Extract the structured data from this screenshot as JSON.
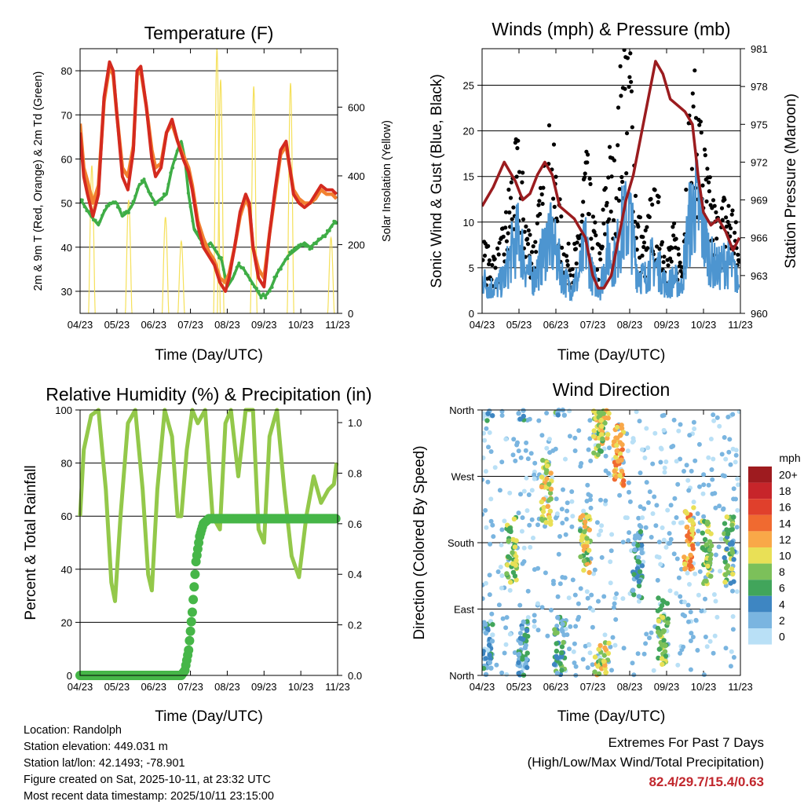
{
  "chart_data": [
    {
      "type": "line",
      "title": "Temperature (F)",
      "xlabel": "Time (Day/UTC)",
      "ylabel": "2m & 9m T (Red, Orange) & 2m Td (Green)",
      "y2label": "Solar Insolation (Yellow)",
      "x_ticks": [
        "04/23",
        "05/23",
        "06/23",
        "07/23",
        "08/23",
        "09/23",
        "10/23",
        "11/23"
      ],
      "xlim": [
        0,
        7
      ],
      "ylim": [
        25,
        85
      ],
      "y_ticks": [
        30,
        40,
        50,
        60,
        70,
        80
      ],
      "y2lim": [
        0,
        770
      ],
      "y2_ticks": [
        0,
        200,
        400,
        600
      ],
      "series": [
        {
          "name": "2m T",
          "color": "#d42a1f",
          "x": [
            0,
            0.1,
            0.2,
            0.35,
            0.5,
            0.65,
            0.8,
            0.9,
            1,
            1.15,
            1.3,
            1.45,
            1.55,
            1.65,
            1.8,
            1.95,
            2.05,
            2.2,
            2.35,
            2.5,
            2.65,
            2.8,
            2.95,
            3.05,
            3.2,
            3.35,
            3.5,
            3.65,
            3.8,
            3.95,
            4.05,
            4.2,
            4.35,
            4.5,
            4.6,
            4.7,
            4.85,
            5,
            5.15,
            5.3,
            5.45,
            5.6,
            5.7,
            5.8,
            5.95,
            6.1,
            6.25,
            6.4,
            6.55,
            6.7,
            6.85,
            6.97
          ],
          "values": [
            66,
            56,
            52,
            47,
            52,
            74,
            82,
            80,
            70,
            56,
            53,
            62,
            80,
            81,
            72,
            60,
            56,
            58,
            66,
            69,
            64,
            60,
            57,
            53,
            45,
            40,
            38,
            36,
            32,
            30,
            33,
            40,
            48,
            52,
            50,
            40,
            33,
            31,
            43,
            53,
            62,
            64,
            58,
            52,
            50,
            49,
            50,
            52,
            54,
            53,
            53,
            52
          ]
        },
        {
          "name": "9m T",
          "color": "#f28030",
          "x": [
            0,
            0.1,
            0.2,
            0.35,
            0.5,
            0.65,
            0.8,
            0.9,
            1,
            1.15,
            1.3,
            1.45,
            1.55,
            1.65,
            1.8,
            1.95,
            2.05,
            2.2,
            2.35,
            2.5,
            2.65,
            2.8,
            2.95,
            3.05,
            3.2,
            3.35,
            3.5,
            3.65,
            3.8,
            3.95,
            4.05,
            4.2,
            4.35,
            4.5,
            4.6,
            4.7,
            4.85,
            5,
            5.15,
            5.3,
            5.45,
            5.6,
            5.7,
            5.8,
            5.95,
            6.1,
            6.25,
            6.4,
            6.55,
            6.7,
            6.85,
            6.97
          ],
          "values": [
            68,
            58,
            55,
            50,
            54,
            73,
            81,
            79,
            70,
            58,
            56,
            63,
            79,
            80,
            72,
            62,
            58,
            59,
            66,
            68,
            64,
            61,
            58,
            54,
            46,
            42,
            39,
            37,
            33,
            32,
            34,
            40,
            47,
            51,
            49,
            40,
            35,
            33,
            43,
            52,
            61,
            63,
            58,
            53,
            51,
            50,
            50,
            51,
            53,
            52,
            52,
            51
          ]
        },
        {
          "name": "2m Td",
          "color": "#3fad46",
          "x": [
            0,
            0.15,
            0.3,
            0.5,
            0.65,
            0.8,
            1,
            1.15,
            1.3,
            1.45,
            1.6,
            1.75,
            1.9,
            2.05,
            2.2,
            2.35,
            2.5,
            2.65,
            2.75,
            2.85,
            2.95,
            3.1,
            3.25,
            3.4,
            3.55,
            3.7,
            3.85,
            4,
            4.15,
            4.3,
            4.45,
            4.6,
            4.75,
            4.9,
            5.05,
            5.2,
            5.35,
            5.5,
            5.65,
            5.8,
            5.95,
            6.1,
            6.25,
            6.4,
            6.55,
            6.7,
            6.85,
            6.97
          ],
          "values": [
            51,
            49,
            47,
            45,
            48,
            50,
            50,
            47,
            48,
            50,
            54,
            55,
            52,
            50,
            51,
            52,
            58,
            62,
            64,
            60,
            52,
            44,
            42,
            40,
            41,
            39,
            37,
            31,
            33,
            36,
            35,
            33,
            31,
            29,
            29,
            31,
            34,
            36,
            38,
            39,
            40,
            41,
            40,
            41,
            42,
            43,
            45,
            46
          ]
        },
        {
          "name": "Solar Insolation",
          "color": "#f5e05a",
          "axis": "y2",
          "peaks": [
            {
              "x": 0.32,
              "value": 430
            },
            {
              "x": 1.32,
              "value": 330
            },
            {
              "x": 2.32,
              "value": 280
            },
            {
              "x": 2.75,
              "value": 210
            },
            {
              "x": 3.72,
              "value": 770
            },
            {
              "x": 3.82,
              "value": 680
            },
            {
              "x": 4.72,
              "value": 660
            },
            {
              "x": 5.72,
              "value": 670
            },
            {
              "x": 6.82,
              "value": 220
            }
          ]
        }
      ]
    },
    {
      "type": "line",
      "title": "Winds (mph) & Pressure (mb)",
      "xlabel": "Time (Day/UTC)",
      "ylabel": "Sonic Wind & Gust (Blue, Black)",
      "y2label": "Station Pressure (Maroon)",
      "x_ticks": [
        "04/23",
        "05/23",
        "06/23",
        "07/23",
        "08/23",
        "09/23",
        "10/23",
        "11/23"
      ],
      "xlim": [
        0,
        7
      ],
      "ylim": [
        0,
        29
      ],
      "y_ticks": [
        0,
        5,
        10,
        15,
        20,
        25
      ],
      "y2lim": [
        960,
        981
      ],
      "y2_ticks": [
        960,
        963,
        966,
        969,
        972,
        975,
        978,
        981
      ],
      "series": [
        {
          "name": "Sonic Wind",
          "color": "#4d95d0",
          "x": [
            0,
            0.2,
            0.4,
            0.6,
            0.8,
            1,
            1.2,
            1.4,
            1.6,
            1.8,
            2,
            2.2,
            2.4,
            2.6,
            2.8,
            3,
            3.2,
            3.4,
            3.6,
            3.8,
            4,
            4.2,
            4.4,
            4.6,
            4.8,
            5,
            5.2,
            5.4,
            5.6,
            5.8,
            6,
            6.2,
            6.4,
            6.6,
            6.8,
            6.97
          ],
          "values": [
            4,
            3,
            3,
            4,
            7,
            9,
            5,
            4,
            6,
            9,
            7,
            4,
            3,
            4,
            8,
            4,
            3,
            7,
            6,
            10,
            11,
            5,
            4,
            6,
            5,
            3,
            4,
            3,
            10,
            13,
            9,
            6,
            5,
            6,
            5,
            3
          ]
        },
        {
          "name": "Gust",
          "color": "#000000",
          "x": [
            0,
            0.2,
            0.4,
            0.6,
            0.8,
            1,
            1.2,
            1.4,
            1.6,
            1.8,
            2,
            2.2,
            2.4,
            2.6,
            2.8,
            3,
            3.2,
            3.4,
            3.6,
            3.8,
            4,
            4.2,
            4.4,
            4.6,
            4.8,
            5,
            5.2,
            5.4,
            5.6,
            5.8,
            6,
            6.2,
            6.4,
            6.6,
            6.8,
            6.97
          ],
          "values": [
            6,
            5,
            5,
            7,
            12,
            14,
            8,
            6,
            10,
            15,
            12,
            6,
            5,
            6,
            14,
            8,
            5,
            14,
            12,
            22,
            24,
            9,
            6,
            10,
            9,
            5,
            7,
            5,
            16,
            19,
            14,
            10,
            8,
            10,
            9,
            5
          ]
        },
        {
          "name": "Station Pressure",
          "color": "#9b1c1f",
          "axis": "y2",
          "x": [
            0,
            0.3,
            0.6,
            0.9,
            1.1,
            1.3,
            1.5,
            1.7,
            1.9,
            2.1,
            2.3,
            2.5,
            2.6,
            2.8,
            3,
            3.15,
            3.3,
            3.5,
            3.7,
            3.9,
            4.1,
            4.3,
            4.5,
            4.7,
            4.9,
            5.1,
            5.3,
            5.5,
            5.7,
            5.85,
            6,
            6.2,
            6.4,
            6.6,
            6.8,
            6.97
          ],
          "values": [
            968.5,
            970,
            972,
            970.5,
            969,
            969.5,
            971,
            972,
            971,
            968.5,
            968,
            967.5,
            967,
            966,
            963,
            962,
            962,
            963,
            966,
            969,
            971,
            974,
            977,
            980,
            979,
            977,
            976.5,
            976,
            975,
            971,
            968,
            967,
            967.5,
            966.5,
            965,
            966
          ]
        }
      ]
    },
    {
      "type": "line",
      "title": "Relative Humidity (%) & Precipitation (in)",
      "xlabel": "Time (Day/UTC)",
      "ylabel": "Percent & Total Rainfall",
      "x_ticks": [
        "04/23",
        "05/23",
        "06/23",
        "07/23",
        "08/23",
        "09/23",
        "10/23",
        "11/23"
      ],
      "xlim": [
        0,
        7
      ],
      "ylim": [
        0,
        100
      ],
      "y_ticks": [
        0,
        20,
        40,
        60,
        80,
        100
      ],
      "y2lim": [
        0,
        1.05
      ],
      "y2_ticks": [
        0.0,
        0.2,
        0.4,
        0.6,
        0.8,
        1.0
      ],
      "series": [
        {
          "name": "Relative Humidity",
          "color": "#93c84a",
          "x": [
            0,
            0.1,
            0.3,
            0.5,
            0.7,
            0.85,
            0.95,
            1.1,
            1.3,
            1.5,
            1.7,
            1.85,
            1.95,
            2.1,
            2.3,
            2.5,
            2.65,
            2.75,
            2.9,
            3.05,
            3.2,
            3.4,
            3.6,
            3.8,
            3.95,
            4.1,
            4.3,
            4.5,
            4.7,
            4.85,
            5,
            5.15,
            5.35,
            5.55,
            5.75,
            5.95,
            6.15,
            6.35,
            6.55,
            6.75,
            6.9,
            6.97
          ],
          "values": [
            60,
            85,
            98,
            100,
            70,
            35,
            28,
            60,
            95,
            100,
            70,
            38,
            32,
            70,
            100,
            90,
            60,
            60,
            85,
            100,
            95,
            100,
            60,
            55,
            95,
            100,
            75,
            100,
            100,
            55,
            50,
            90,
            100,
            70,
            45,
            37,
            60,
            75,
            65,
            70,
            72,
            80
          ]
        },
        {
          "name": "Total Precipitation",
          "color": "#46b648",
          "axis": "y2",
          "x": [
            0,
            1,
            2,
            2.75,
            2.85,
            2.95,
            3.05,
            3.15,
            3.25,
            3.35,
            3.5,
            4,
            5,
            6,
            6.97
          ],
          "values": [
            0,
            0,
            0,
            0,
            0.02,
            0.1,
            0.25,
            0.45,
            0.55,
            0.6,
            0.62,
            0.62,
            0.62,
            0.62,
            0.62
          ]
        }
      ]
    },
    {
      "type": "scatter",
      "title": "Wind Direction",
      "xlabel": "Time (Day/UTC)",
      "ylabel": "Direction (Colored By Speed)",
      "x_ticks": [
        "04/23",
        "05/23",
        "06/23",
        "07/23",
        "08/23",
        "09/23",
        "10/23",
        "11/23"
      ],
      "xlim": [
        0,
        7
      ],
      "ylim": [
        0,
        360
      ],
      "y_ticks": [
        0,
        90,
        180,
        270,
        360
      ],
      "y_tick_labels": [
        "North",
        "East",
        "South",
        "West",
        "North"
      ],
      "legend_title": "mph",
      "legend_labels": [
        "20+",
        "18",
        "16",
        "14",
        "12",
        "10",
        "8",
        "6",
        "4",
        "2",
        "0"
      ],
      "legend_colors": [
        "#9e1b1f",
        "#c7252a",
        "#e0402c",
        "#f06a30",
        "#f9a848",
        "#e9e056",
        "#7cc05a",
        "#41a55b",
        "#3e86c2",
        "#7ab5e0",
        "#b9e0f6"
      ],
      "clusters": [
        {
          "x": 0.15,
          "dir": 30,
          "speed": 3
        },
        {
          "x": 0.8,
          "dir": 170,
          "speed": 8
        },
        {
          "x": 1.1,
          "dir": 30,
          "speed": 4
        },
        {
          "x": 1.75,
          "dir": 250,
          "speed": 10
        },
        {
          "x": 2.1,
          "dir": 35,
          "speed": 5
        },
        {
          "x": 2.8,
          "dir": 180,
          "speed": 9
        },
        {
          "x": 3.15,
          "dir": 340,
          "speed": 9
        },
        {
          "x": 3.7,
          "dir": 300,
          "speed": 12
        },
        {
          "x": 3.3,
          "dir": 5,
          "speed": 10
        },
        {
          "x": 4.2,
          "dir": 150,
          "speed": 4
        },
        {
          "x": 4.9,
          "dir": 60,
          "speed": 8
        },
        {
          "x": 5.6,
          "dir": 185,
          "speed": 12
        },
        {
          "x": 6.1,
          "dir": 165,
          "speed": 8
        },
        {
          "x": 6.7,
          "dir": 170,
          "speed": 7
        }
      ]
    }
  ],
  "station_info": {
    "location": "Location: Randolph",
    "elevation": "Station elevation: 449.031 m",
    "latlon": "Station lat/lon: 42.1493; -78.901",
    "created": "Figure created on Sat, 2025-10-11, at 23:32 UTC",
    "recent": "Most recent data timestamp: 2025/10/11 23:15:00"
  },
  "extremes": {
    "title": "Extremes For Past 7 Days",
    "subtitle": "(High/Low/Max Wind/Total Precipitation)",
    "values": "82.4/29.7/15.4/0.63"
  }
}
